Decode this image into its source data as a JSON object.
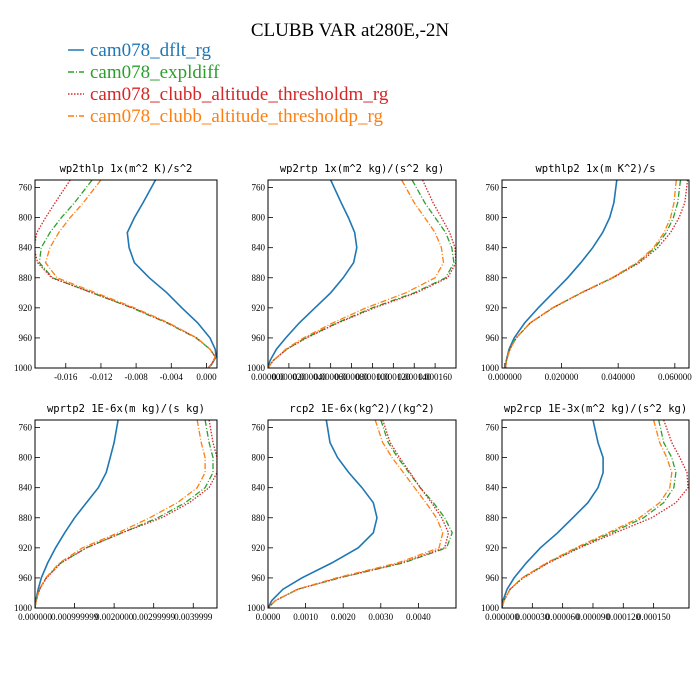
{
  "figure": {
    "title": "CLUBB VAR at280E,-2N"
  },
  "legend": [
    {
      "label": "cam078_dflt_rg",
      "color": "#1f77b4",
      "dash": "solid"
    },
    {
      "label": "cam078_expldiff",
      "color": "#2ca02c",
      "dash": "dashdot"
    },
    {
      "label": "cam078_clubb_altitude_thresholdm_rg",
      "color": "#d62728",
      "dash": "dot"
    },
    {
      "label": "cam078_clubb_altitude_thresholdp_rg",
      "color": "#ff7f0e",
      "dash": "dashdot"
    }
  ],
  "chart_data": [
    {
      "type": "line",
      "title": "wp2thlp  1x(m^2 K)/s^2",
      "xlim": [
        -0.0195,
        0.0012
      ],
      "ylim": [
        750,
        1000
      ],
      "y_inverted": true,
      "xticks": [
        -0.016,
        -0.012,
        -0.008,
        -0.004,
        0.0
      ],
      "xtick_labels": [
        "-0.016",
        "-0.012",
        "-0.008",
        "-0.004",
        "0.000"
      ],
      "yticks": [
        760,
        800,
        840,
        880,
        920,
        960,
        1000
      ],
      "ytick_labels": [
        "760",
        "800",
        "840",
        "880",
        "920",
        "960",
        "1000"
      ],
      "series": [
        {
          "y": [
            750,
            780,
            800,
            820,
            840,
            860,
            880,
            900,
            920,
            940,
            960,
            975,
            985,
            995,
            1000
          ],
          "x": [
            -0.0058,
            -0.0072,
            -0.0082,
            -0.009,
            -0.0088,
            -0.0082,
            -0.0065,
            -0.0045,
            -0.0028,
            -0.001,
            0.0004,
            0.001,
            0.0011,
            0.0006,
            0.0002
          ]
        },
        {
          "y": [
            750,
            780,
            800,
            820,
            840,
            860,
            880,
            900,
            920,
            940,
            960,
            975,
            985,
            995,
            1000
          ],
          "x": [
            -0.013,
            -0.015,
            -0.0165,
            -0.0178,
            -0.0188,
            -0.019,
            -0.0175,
            -0.013,
            -0.0085,
            -0.0045,
            -0.0012,
            0.0004,
            0.001,
            0.0006,
            0.0002
          ]
        },
        {
          "y": [
            750,
            780,
            800,
            820,
            840,
            860,
            880,
            900,
            920,
            940,
            960,
            975,
            985,
            995,
            1000
          ],
          "x": [
            -0.0155,
            -0.0172,
            -0.0183,
            -0.0193,
            -0.0196,
            -0.0192,
            -0.0176,
            -0.013,
            -0.0084,
            -0.0044,
            -0.0011,
            0.0004,
            0.001,
            0.0006,
            0.0002
          ]
        },
        {
          "y": [
            750,
            780,
            800,
            820,
            840,
            860,
            880,
            900,
            920,
            940,
            960,
            975,
            985,
            995,
            1000
          ],
          "x": [
            -0.012,
            -0.014,
            -0.0155,
            -0.0168,
            -0.0178,
            -0.0183,
            -0.017,
            -0.0126,
            -0.0082,
            -0.0043,
            -0.0011,
            0.0004,
            0.001,
            0.0006,
            0.0002
          ]
        }
      ]
    },
    {
      "type": "line",
      "title": "wp2rtp  1x(m^2 kg)/(s^2 kg)",
      "xlim": [
        0.0,
        0.00018
      ],
      "ylim": [
        750,
        1000
      ],
      "y_inverted": true,
      "xticks": [
        0.0,
        2e-05,
        4e-05,
        6e-05,
        8e-05,
        0.0001,
        0.00012,
        0.00014,
        0.00016
      ],
      "xtick_labels": [
        "0.000000",
        "0.000020",
        "0.000040",
        "0.000060",
        "0.000080",
        "0.000100",
        "0.000120",
        "0.000140",
        "0.000160"
      ],
      "yticks": [
        760,
        800,
        840,
        880,
        920,
        960,
        1000
      ],
      "ytick_labels": [
        "760",
        "800",
        "840",
        "880",
        "920",
        "960",
        "1000"
      ],
      "series": [
        {
          "y": [
            750,
            780,
            800,
            820,
            840,
            860,
            880,
            900,
            920,
            940,
            960,
            975,
            990,
            1000
          ],
          "x": [
            6e-05,
            7e-05,
            7.7e-05,
            8.3e-05,
            8.5e-05,
            8.2e-05,
            7.2e-05,
            6e-05,
            4.5e-05,
            3e-05,
            1.7e-05,
            8e-06,
            2e-06,
            0.0
          ]
        },
        {
          "y": [
            750,
            780,
            800,
            820,
            840,
            860,
            880,
            900,
            920,
            940,
            960,
            975,
            990,
            1000
          ],
          "x": [
            0.000138,
            0.00015,
            0.00016,
            0.00017,
            0.000176,
            0.000178,
            0.00017,
            0.00014,
            0.0001,
            6.6e-05,
            3.6e-05,
            1.8e-05,
            5e-06,
            0.0
          ]
        },
        {
          "y": [
            750,
            780,
            800,
            820,
            840,
            860,
            880,
            900,
            920,
            940,
            960,
            975,
            990,
            1000
          ],
          "x": [
            0.000148,
            0.000158,
            0.000166,
            0.000174,
            0.000179,
            0.00018,
            0.000172,
            0.000142,
            0.000102,
            6.7e-05,
            3.7e-05,
            1.8e-05,
            5e-06,
            0.0
          ]
        },
        {
          "y": [
            750,
            780,
            800,
            820,
            840,
            860,
            880,
            900,
            920,
            940,
            960,
            975,
            990,
            1000
          ],
          "x": [
            0.000128,
            0.00014,
            0.00015,
            0.00016,
            0.000166,
            0.000168,
            0.00016,
            0.000132,
            9.4e-05,
            6.2e-05,
            3.4e-05,
            1.7e-05,
            5e-06,
            0.0
          ]
        }
      ]
    },
    {
      "type": "line",
      "title": "wpthlp2  1x(m K^2)/s",
      "xlim": [
        -0.001,
        0.065
      ],
      "ylim": [
        750,
        1000
      ],
      "y_inverted": true,
      "xticks": [
        0.0,
        0.02,
        0.04,
        0.06
      ],
      "xtick_labels": [
        "0.000000",
        "0.020000",
        "0.040000",
        "0.060000"
      ],
      "yticks": [
        760,
        800,
        840,
        880,
        920,
        960,
        1000
      ],
      "ytick_labels": [
        "760",
        "800",
        "840",
        "880",
        "920",
        "960",
        "1000"
      ],
      "series": [
        {
          "y": [
            750,
            780,
            800,
            820,
            840,
            860,
            880,
            900,
            920,
            940,
            960,
            975,
            990,
            1000
          ],
          "x": [
            0.0395,
            0.0385,
            0.037,
            0.0345,
            0.031,
            0.0268,
            0.0222,
            0.017,
            0.0118,
            0.007,
            0.0033,
            0.0015,
            0.0005,
            0.0002
          ]
        },
        {
          "y": [
            750,
            780,
            800,
            820,
            840,
            860,
            880,
            900,
            920,
            940,
            960,
            975,
            990,
            1000
          ],
          "x": [
            0.062,
            0.061,
            0.0595,
            0.057,
            0.053,
            0.047,
            0.038,
            0.027,
            0.017,
            0.009,
            0.004,
            0.0018,
            0.0006,
            0.0002
          ]
        },
        {
          "y": [
            750,
            780,
            800,
            820,
            840,
            860,
            880,
            900,
            920,
            940,
            960,
            975,
            990,
            1000
          ],
          "x": [
            0.0645,
            0.0635,
            0.0615,
            0.0585,
            0.054,
            0.0475,
            0.0382,
            0.0271,
            0.017,
            0.009,
            0.004,
            0.0018,
            0.0006,
            0.0002
          ]
        },
        {
          "y": [
            750,
            780,
            800,
            820,
            840,
            860,
            880,
            900,
            920,
            940,
            960,
            975,
            990,
            1000
          ],
          "x": [
            0.0605,
            0.0597,
            0.0585,
            0.0562,
            0.0525,
            0.0466,
            0.0378,
            0.0268,
            0.0168,
            0.0089,
            0.004,
            0.0018,
            0.0006,
            0.0002
          ]
        }
      ]
    },
    {
      "type": "line",
      "title": "wprtp2  1E-6x(m kg)/(s kg)",
      "xlim": [
        0.0,
        4.6e-06
      ],
      "ylim": [
        750,
        1000
      ],
      "y_inverted": true,
      "xticks": [
        0.0,
        1e-06,
        2e-06,
        3e-06,
        4e-06
      ],
      "xtick_labels": [
        "0.000000",
        "0.000999999",
        "0.0020000",
        "0.00299999",
        "0.0039999"
      ],
      "yticks": [
        760,
        800,
        840,
        880,
        920,
        960,
        1000
      ],
      "ytick_labels": [
        "760",
        "800",
        "840",
        "880",
        "920",
        "960",
        "1000"
      ],
      "series": [
        {
          "y": [
            750,
            780,
            800,
            820,
            840,
            860,
            880,
            900,
            920,
            940,
            960,
            975,
            990,
            1000
          ],
          "x": [
            2.1e-06,
            2e-06,
            1.9e-06,
            1.8e-06,
            1.6e-06,
            1.3e-06,
            1e-06,
            7.5e-07,
            5.2e-07,
            3.2e-07,
            1.6e-07,
            8e-08,
            2e-08,
            0.0
          ]
        },
        {
          "y": [
            750,
            780,
            800,
            820,
            840,
            860,
            880,
            900,
            920,
            940,
            960,
            975,
            990,
            1000
          ],
          "x": [
            4.3e-06,
            4.4e-06,
            4.5e-06,
            4.5e-06,
            4.3e-06,
            3.8e-06,
            3.1e-06,
            2.2e-06,
            1.3e-06,
            6.5e-07,
            2.8e-07,
            1.2e-07,
            3e-08,
            0.0
          ]
        },
        {
          "y": [
            750,
            780,
            800,
            820,
            840,
            860,
            880,
            900,
            920,
            940,
            960,
            975,
            990,
            1000
          ],
          "x": [
            4.4e-06,
            4.5e-06,
            4.6e-06,
            4.6e-06,
            4.4e-06,
            3.9e-06,
            3.2e-06,
            2.2e-06,
            1.3e-06,
            6.6e-07,
            2.9e-07,
            1.2e-07,
            3e-08,
            0.0
          ]
        },
        {
          "y": [
            750,
            780,
            800,
            820,
            840,
            860,
            880,
            900,
            920,
            940,
            960,
            975,
            990,
            1000
          ],
          "x": [
            4.1e-06,
            4.2e-06,
            4.3e-06,
            4.3e-06,
            4.1e-06,
            3.6e-06,
            2.9e-06,
            2.1e-06,
            1.2e-06,
            6.2e-07,
            2.7e-07,
            1.1e-07,
            3e-08,
            0.0
          ]
        }
      ]
    },
    {
      "type": "line",
      "title": "rcp2  1E-6x(kg^2)/(kg^2)",
      "xlim": [
        0.0,
        0.005
      ],
      "ylim": [
        750,
        1000
      ],
      "y_inverted": true,
      "xticks": [
        0.0,
        0.001,
        0.002,
        0.003,
        0.004
      ],
      "xtick_labels": [
        "0.0000",
        "0.0010",
        "0.0020",
        "0.0030",
        "0.0040"
      ],
      "yticks": [
        760,
        800,
        840,
        880,
        920,
        960,
        1000
      ],
      "ytick_labels": [
        "760",
        "800",
        "840",
        "880",
        "920",
        "960",
        "1000"
      ],
      "series": [
        {
          "y": [
            750,
            780,
            800,
            820,
            840,
            860,
            880,
            900,
            920,
            940,
            960,
            975,
            990,
            1000
          ],
          "x": [
            0.00155,
            0.00165,
            0.00185,
            0.00215,
            0.0025,
            0.0028,
            0.0029,
            0.0028,
            0.0024,
            0.0017,
            0.0009,
            0.0004,
            0.0001,
            0.0
          ]
        },
        {
          "y": [
            750,
            780,
            800,
            820,
            840,
            860,
            880,
            900,
            920,
            940,
            960,
            975,
            990,
            1000
          ],
          "x": [
            0.003,
            0.0032,
            0.00345,
            0.00375,
            0.00405,
            0.0044,
            0.0047,
            0.0049,
            0.00475,
            0.0036,
            0.0019,
            0.0008,
            0.0002,
            0.0
          ]
        },
        {
          "y": [
            750,
            780,
            800,
            820,
            840,
            860,
            880,
            900,
            920,
            940,
            960,
            975,
            990,
            1000
          ],
          "x": [
            0.00305,
            0.00325,
            0.0035,
            0.00378,
            0.00405,
            0.00435,
            0.00462,
            0.0048,
            0.0047,
            0.00355,
            0.00188,
            0.0008,
            0.0002,
            0.0
          ]
        },
        {
          "y": [
            750,
            780,
            800,
            820,
            840,
            860,
            880,
            900,
            920,
            940,
            960,
            975,
            990,
            1000
          ],
          "x": [
            0.00285,
            0.00305,
            0.0033,
            0.0036,
            0.0039,
            0.0042,
            0.00448,
            0.00465,
            0.00455,
            0.00345,
            0.00182,
            0.00078,
            0.0002,
            0.0
          ]
        }
      ]
    },
    {
      "type": "line",
      "title": "wp2rcp  1E-3x(m^2 kg)/(s^2 kg)",
      "xlim": [
        0.0,
        0.000185
      ],
      "ylim": [
        750,
        1000
      ],
      "y_inverted": true,
      "xticks": [
        0.0,
        3e-05,
        6e-05,
        9e-05,
        0.00012,
        0.00015
      ],
      "xtick_labels": [
        "0.000000",
        "0.000030",
        "0.000060",
        "0.000090",
        "0.000120",
        "0.000150"
      ],
      "yticks": [
        760,
        800,
        840,
        880,
        920,
        960,
        1000
      ],
      "ytick_labels": [
        "760",
        "800",
        "840",
        "880",
        "920",
        "960",
        "1000"
      ],
      "series": [
        {
          "y": [
            750,
            780,
            800,
            820,
            840,
            860,
            880,
            900,
            920,
            940,
            960,
            975,
            990,
            1000
          ],
          "x": [
            9e-05,
            9.5e-05,
            0.0001,
            0.0001,
            9.5e-05,
            8.5e-05,
            7e-05,
            5.5e-05,
            3.8e-05,
            2.4e-05,
            1.2e-05,
            5e-06,
            1e-06,
            0.0
          ]
        },
        {
          "y": [
            750,
            780,
            800,
            820,
            840,
            860,
            880,
            900,
            920,
            940,
            960,
            975,
            990,
            1000
          ],
          "x": [
            0.000155,
            0.00016,
            0.000168,
            0.000172,
            0.00017,
            0.00016,
            0.00014,
            0.000108,
            7.5e-05,
            4.5e-05,
            2e-05,
            8e-06,
            2e-06,
            0.0
          ]
        },
        {
          "y": [
            750,
            780,
            800,
            820,
            840,
            860,
            880,
            900,
            920,
            940,
            960,
            975,
            990,
            1000
          ],
          "x": [
            0.00016,
            0.000168,
            0.000176,
            0.000183,
            0.000184,
            0.000172,
            0.000148,
            0.000112,
            7.7e-05,
            4.6e-05,
            2.1e-05,
            8e-06,
            2e-06,
            0.0
          ]
        },
        {
          "y": [
            750,
            780,
            800,
            820,
            840,
            860,
            880,
            900,
            920,
            940,
            960,
            975,
            990,
            1000
          ],
          "x": [
            0.00015,
            0.000156,
            0.000163,
            0.000168,
            0.000166,
            0.000156,
            0.000136,
            0.000105,
            7.3e-05,
            4.4e-05,
            2e-05,
            8e-06,
            2e-06,
            0.0
          ]
        }
      ]
    }
  ]
}
